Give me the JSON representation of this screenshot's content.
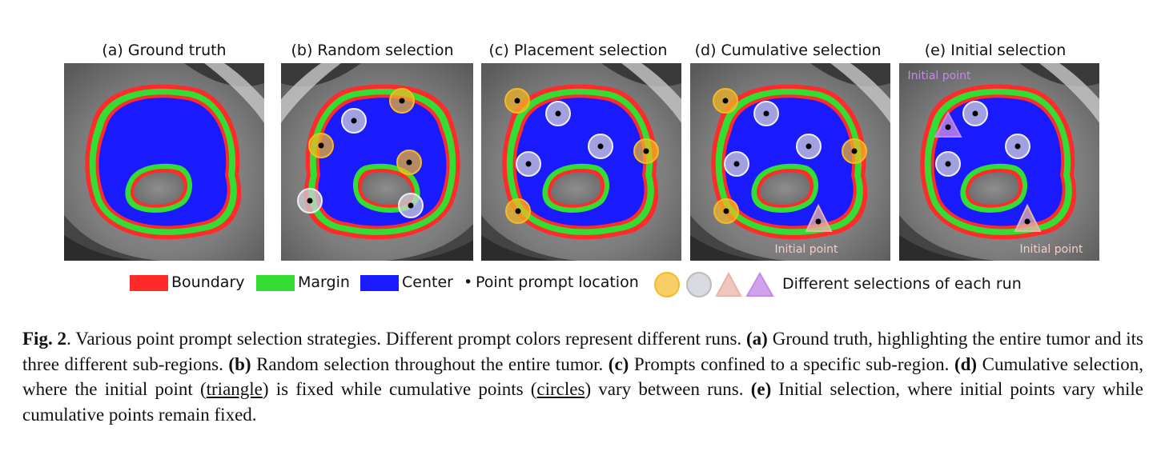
{
  "panels": [
    {
      "title": "(a) Ground truth"
    },
    {
      "title": "(b) Random selection"
    },
    {
      "title": "(c) Placement selection"
    },
    {
      "title": "(d) Cumulative selection",
      "annotation": "Initial point"
    },
    {
      "title": "(e) Initial selection",
      "annotation_top": "Initial point",
      "annotation_bottom": "Initial point"
    }
  ],
  "legend": {
    "boundary": "Boundary",
    "margin": "Margin",
    "center": "Center",
    "point": "Point prompt location",
    "selections": "Different selections of each run"
  },
  "colors": {
    "boundary": "#ff2a2a",
    "margin": "#33dd33",
    "center": "#1a1aff",
    "orange": "#f7b924",
    "gray": "#cfcfd8",
    "pink": "#e8b4a8",
    "purple": "#c48ae8"
  },
  "caption": {
    "fig_label": "Fig. 2",
    "sentence1": ". Various point prompt selection strategies. Different prompt colors represent different runs. ",
    "a_label": "(a)",
    "a_text": " Ground truth, highlighting the entire tumor and its three different sub-regions. ",
    "b_label": "(b)",
    "b_text": " Random selection throughout the entire tumor. ",
    "c_label": "(c)",
    "c_text": " Prompts confined to a specific sub-region. ",
    "d_label": "(d)",
    "d_text1": " Cumulative selection, where the initial point (",
    "d_triangle": "triangle",
    "d_text2": ") is fixed while cumulative points (",
    "d_circles": "circles",
    "d_text3": ") vary between runs. ",
    "e_label": "(e)",
    "e_text": " Initial selection, where initial points vary while cumulative points remain fixed."
  }
}
